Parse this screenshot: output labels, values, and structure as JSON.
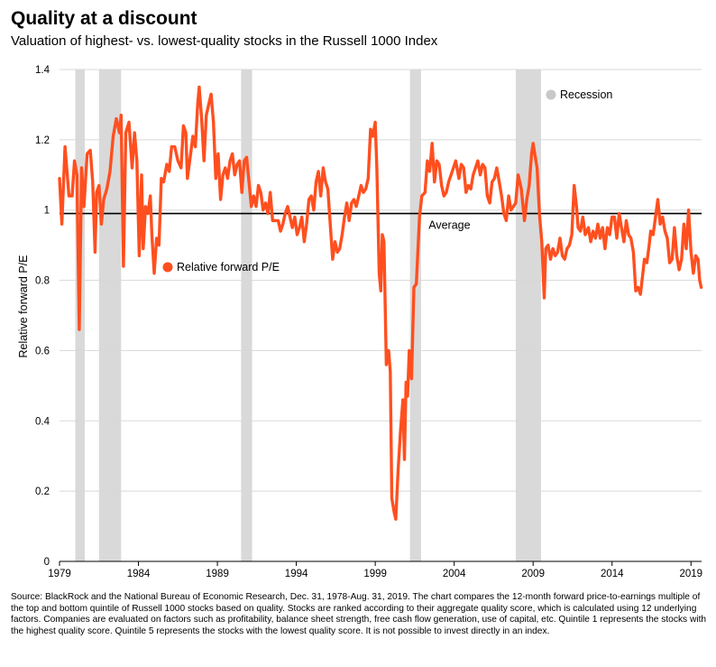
{
  "header": {
    "title": "Quality at a discount",
    "subtitle": "Valuation of highest- vs. lowest-quality stocks in the Russell 1000 Index"
  },
  "footer": {
    "source": "Source: BlackRock and the National Bureau of Economic Research, Dec. 31, 1978-Aug. 31, 2019. The chart compares the 12-month forward price-to-earnings multiple of the top and bottom quintile of Russell 1000 stocks based on quality. Stocks are ranked according to their aggregate quality score, which is calculated using 12 underlying factors. Companies are evaluated on factors such as profitability, balance sheet strength, free cash flow generation, use of capital, etc. Quintile 1 represents the stocks with the highest quality score. Quintile 5 represents the stocks with the lowest quality score. It is not possible to invest directly in an index."
  },
  "chart_data": {
    "type": "line",
    "ylabel": "Relative forward P/E",
    "xlabel": "",
    "xlim": [
      1979,
      2019.67
    ],
    "ylim": [
      0,
      1.4
    ],
    "yticks": [
      0,
      0.2,
      0.4,
      0.6,
      0.8,
      1,
      1.2,
      1.4
    ],
    "ytick_labels": [
      "0",
      "0.2",
      "0.4",
      "0.6",
      "0.8",
      "1",
      "1.2",
      "1.4"
    ],
    "xticks": [
      1979,
      1984,
      1989,
      1994,
      1999,
      2004,
      2009,
      2014,
      2019
    ],
    "xtick_labels": [
      "1979",
      "1984",
      "1989",
      "1994",
      "1999",
      "2004",
      "2009",
      "2014",
      "2019"
    ],
    "grid": "horizontal",
    "colors": {
      "line": "#ff4f1f",
      "recession": "#d9d9d9",
      "average": "#000000",
      "grid": "#d8d8d8"
    },
    "average": {
      "value": 0.99,
      "label": "Average"
    },
    "recessions": [
      [
        1980.0,
        1980.6
      ],
      [
        1981.5,
        1982.9
      ],
      [
        1990.5,
        1991.2
      ],
      [
        2001.2,
        2001.9
      ],
      [
        2007.9,
        2009.5
      ]
    ],
    "legend": [
      {
        "label": "Recession",
        "color": "#c8c8c8",
        "placement": "top-right"
      },
      {
        "label": "Relative forward P/E",
        "color": "#ff4f1f",
        "placement": "middle-left"
      }
    ],
    "series": [
      {
        "name": "Relative forward P/E",
        "points": [
          [
            1979.0,
            1.09
          ],
          [
            1979.15,
            0.96
          ],
          [
            1979.35,
            1.18
          ],
          [
            1979.6,
            1.04
          ],
          [
            1979.8,
            1.04
          ],
          [
            1979.95,
            1.14
          ],
          [
            1980.1,
            1.1
          ],
          [
            1980.25,
            0.66
          ],
          [
            1980.4,
            1.12
          ],
          [
            1980.55,
            1.01
          ],
          [
            1980.75,
            1.16
          ],
          [
            1980.95,
            1.17
          ],
          [
            1981.1,
            1.08
          ],
          [
            1981.25,
            0.88
          ],
          [
            1981.35,
            1.05
          ],
          [
            1981.5,
            1.07
          ],
          [
            1981.65,
            0.96
          ],
          [
            1981.8,
            1.03
          ],
          [
            1982.0,
            1.06
          ],
          [
            1982.2,
            1.11
          ],
          [
            1982.4,
            1.21
          ],
          [
            1982.6,
            1.26
          ],
          [
            1982.8,
            1.22
          ],
          [
            1982.9,
            1.27
          ],
          [
            1983.05,
            0.84
          ],
          [
            1983.2,
            1.22
          ],
          [
            1983.4,
            1.25
          ],
          [
            1983.6,
            1.12
          ],
          [
            1983.75,
            1.22
          ],
          [
            1983.9,
            1.14
          ],
          [
            1984.05,
            0.87
          ],
          [
            1984.2,
            1.1
          ],
          [
            1984.3,
            0.89
          ],
          [
            1984.45,
            1.01
          ],
          [
            1984.6,
            0.99
          ],
          [
            1984.75,
            1.04
          ],
          [
            1984.85,
            0.93
          ],
          [
            1985.0,
            0.82
          ],
          [
            1985.15,
            0.92
          ],
          [
            1985.3,
            0.9
          ],
          [
            1985.45,
            1.09
          ],
          [
            1985.6,
            1.08
          ],
          [
            1985.8,
            1.13
          ],
          [
            1985.95,
            1.11
          ],
          [
            1986.1,
            1.18
          ],
          [
            1986.3,
            1.18
          ],
          [
            1986.5,
            1.14
          ],
          [
            1986.7,
            1.12
          ],
          [
            1986.85,
            1.24
          ],
          [
            1987.0,
            1.22
          ],
          [
            1987.1,
            1.09
          ],
          [
            1987.25,
            1.14
          ],
          [
            1987.45,
            1.21
          ],
          [
            1987.6,
            1.18
          ],
          [
            1987.75,
            1.3
          ],
          [
            1987.85,
            1.35
          ],
          [
            1988.0,
            1.26
          ],
          [
            1988.15,
            1.14
          ],
          [
            1988.3,
            1.27
          ],
          [
            1988.45,
            1.3
          ],
          [
            1988.6,
            1.33
          ],
          [
            1988.75,
            1.25
          ],
          [
            1988.9,
            1.09
          ],
          [
            1989.05,
            1.16
          ],
          [
            1989.2,
            1.03
          ],
          [
            1989.35,
            1.1
          ],
          [
            1989.5,
            1.12
          ],
          [
            1989.65,
            1.09
          ],
          [
            1989.8,
            1.14
          ],
          [
            1989.95,
            1.16
          ],
          [
            1990.1,
            1.1
          ],
          [
            1990.25,
            1.13
          ],
          [
            1990.4,
            1.14
          ],
          [
            1990.55,
            1.05
          ],
          [
            1990.7,
            1.14
          ],
          [
            1990.85,
            1.15
          ],
          [
            1991.0,
            1.08
          ],
          [
            1991.15,
            1.01
          ],
          [
            1991.3,
            1.04
          ],
          [
            1991.45,
            1.01
          ],
          [
            1991.6,
            1.07
          ],
          [
            1991.75,
            1.05
          ],
          [
            1991.9,
            1.0
          ],
          [
            1992.05,
            1.02
          ],
          [
            1992.2,
            0.99
          ],
          [
            1992.35,
            1.05
          ],
          [
            1992.5,
            0.97
          ],
          [
            1992.7,
            0.97
          ],
          [
            1992.85,
            0.97
          ],
          [
            1993.0,
            0.94
          ],
          [
            1993.15,
            0.96
          ],
          [
            1993.3,
            0.99
          ],
          [
            1993.45,
            1.01
          ],
          [
            1993.6,
            0.98
          ],
          [
            1993.75,
            0.95
          ],
          [
            1993.9,
            0.98
          ],
          [
            1994.05,
            0.93
          ],
          [
            1994.2,
            0.95
          ],
          [
            1994.35,
            0.98
          ],
          [
            1994.5,
            0.91
          ],
          [
            1994.65,
            0.96
          ],
          [
            1994.8,
            1.03
          ],
          [
            1994.95,
            1.04
          ],
          [
            1995.1,
            1.0
          ],
          [
            1995.25,
            1.08
          ],
          [
            1995.4,
            1.11
          ],
          [
            1995.55,
            1.04
          ],
          [
            1995.7,
            1.12
          ],
          [
            1995.85,
            1.08
          ],
          [
            1996.0,
            1.06
          ],
          [
            1996.15,
            0.96
          ],
          [
            1996.3,
            0.86
          ],
          [
            1996.45,
            0.91
          ],
          [
            1996.6,
            0.88
          ],
          [
            1996.75,
            0.89
          ],
          [
            1996.9,
            0.93
          ],
          [
            1997.05,
            0.98
          ],
          [
            1997.2,
            1.02
          ],
          [
            1997.35,
            0.97
          ],
          [
            1997.5,
            1.02
          ],
          [
            1997.65,
            1.03
          ],
          [
            1997.8,
            1.01
          ],
          [
            1997.95,
            1.04
          ],
          [
            1998.1,
            1.07
          ],
          [
            1998.25,
            1.05
          ],
          [
            1998.4,
            1.06
          ],
          [
            1998.55,
            1.09
          ],
          [
            1998.7,
            1.23
          ],
          [
            1998.85,
            1.21
          ],
          [
            1999.0,
            1.25
          ],
          [
            1999.1,
            1.12
          ],
          [
            1999.25,
            0.82
          ],
          [
            1999.35,
            0.77
          ],
          [
            1999.45,
            0.93
          ],
          [
            1999.55,
            0.91
          ],
          [
            1999.7,
            0.56
          ],
          [
            1999.85,
            0.6
          ],
          [
            1999.95,
            0.54
          ],
          [
            2000.05,
            0.18
          ],
          [
            2000.2,
            0.14
          ],
          [
            2000.3,
            0.12
          ],
          [
            2000.45,
            0.26
          ],
          [
            2000.6,
            0.37
          ],
          [
            2000.75,
            0.46
          ],
          [
            2000.85,
            0.29
          ],
          [
            2000.95,
            0.51
          ],
          [
            2001.05,
            0.47
          ],
          [
            2001.15,
            0.6
          ],
          [
            2001.3,
            0.52
          ],
          [
            2001.45,
            0.78
          ],
          [
            2001.6,
            0.79
          ],
          [
            2001.8,
            0.98
          ],
          [
            2001.95,
            1.04
          ],
          [
            2002.15,
            1.05
          ],
          [
            2002.3,
            1.14
          ],
          [
            2002.45,
            1.11
          ],
          [
            2002.6,
            1.19
          ],
          [
            2002.75,
            1.08
          ],
          [
            2002.9,
            1.14
          ],
          [
            2003.05,
            1.13
          ],
          [
            2003.2,
            1.07
          ],
          [
            2003.35,
            1.04
          ],
          [
            2003.5,
            1.05
          ],
          [
            2003.65,
            1.08
          ],
          [
            2003.8,
            1.1
          ],
          [
            2003.95,
            1.12
          ],
          [
            2004.1,
            1.14
          ],
          [
            2004.3,
            1.09
          ],
          [
            2004.45,
            1.13
          ],
          [
            2004.6,
            1.12
          ],
          [
            2004.75,
            1.05
          ],
          [
            2004.9,
            1.07
          ],
          [
            2005.05,
            1.06
          ],
          [
            2005.2,
            1.1
          ],
          [
            2005.35,
            1.12
          ],
          [
            2005.5,
            1.14
          ],
          [
            2005.65,
            1.1
          ],
          [
            2005.8,
            1.13
          ],
          [
            2005.95,
            1.12
          ],
          [
            2006.1,
            1.04
          ],
          [
            2006.25,
            1.02
          ],
          [
            2006.4,
            1.08
          ],
          [
            2006.55,
            1.09
          ],
          [
            2006.7,
            1.12
          ],
          [
            2006.85,
            1.08
          ],
          [
            2007.0,
            1.04
          ],
          [
            2007.15,
            0.99
          ],
          [
            2007.3,
            0.97
          ],
          [
            2007.45,
            1.04
          ],
          [
            2007.6,
            1.0
          ],
          [
            2007.75,
            1.01
          ],
          [
            2007.9,
            1.02
          ],
          [
            2008.05,
            1.1
          ],
          [
            2008.25,
            1.06
          ],
          [
            2008.45,
            0.97
          ],
          [
            2008.6,
            1.03
          ],
          [
            2008.75,
            1.07
          ],
          [
            2008.9,
            1.16
          ],
          [
            2009.0,
            1.19
          ],
          [
            2009.1,
            1.16
          ],
          [
            2009.25,
            1.12
          ],
          [
            2009.4,
            0.99
          ],
          [
            2009.55,
            0.91
          ],
          [
            2009.7,
            0.75
          ],
          [
            2009.8,
            0.89
          ],
          [
            2009.95,
            0.9
          ],
          [
            2010.1,
            0.86
          ],
          [
            2010.25,
            0.89
          ],
          [
            2010.4,
            0.87
          ],
          [
            2010.55,
            0.88
          ],
          [
            2010.7,
            0.92
          ],
          [
            2010.85,
            0.87
          ],
          [
            2011.0,
            0.86
          ],
          [
            2011.15,
            0.89
          ],
          [
            2011.3,
            0.9
          ],
          [
            2011.45,
            0.93
          ],
          [
            2011.6,
            1.07
          ],
          [
            2011.75,
            1.01
          ],
          [
            2011.85,
            0.95
          ],
          [
            2012.0,
            0.94
          ],
          [
            2012.15,
            0.98
          ],
          [
            2012.3,
            0.93
          ],
          [
            2012.5,
            0.95
          ],
          [
            2012.65,
            0.91
          ],
          [
            2012.8,
            0.94
          ],
          [
            2012.95,
            0.92
          ],
          [
            2013.1,
            0.96
          ],
          [
            2013.25,
            0.92
          ],
          [
            2013.4,
            0.95
          ],
          [
            2013.55,
            0.89
          ],
          [
            2013.7,
            0.95
          ],
          [
            2013.85,
            0.93
          ],
          [
            2014.0,
            0.98
          ],
          [
            2014.15,
            0.98
          ],
          [
            2014.3,
            0.92
          ],
          [
            2014.45,
            0.99
          ],
          [
            2014.6,
            0.95
          ],
          [
            2014.75,
            0.91
          ],
          [
            2014.9,
            0.97
          ],
          [
            2015.05,
            0.93
          ],
          [
            2015.2,
            0.92
          ],
          [
            2015.35,
            0.88
          ],
          [
            2015.5,
            0.77
          ],
          [
            2015.65,
            0.78
          ],
          [
            2015.8,
            0.76
          ],
          [
            2015.95,
            0.82
          ],
          [
            2016.05,
            0.86
          ],
          [
            2016.2,
            0.85
          ],
          [
            2016.35,
            0.9
          ],
          [
            2016.45,
            0.94
          ],
          [
            2016.6,
            0.93
          ],
          [
            2016.75,
            0.98
          ],
          [
            2016.9,
            1.03
          ],
          [
            2017.05,
            0.96
          ],
          [
            2017.2,
            0.98
          ],
          [
            2017.35,
            0.94
          ],
          [
            2017.5,
            0.92
          ],
          [
            2017.65,
            0.85
          ],
          [
            2017.8,
            0.86
          ],
          [
            2017.95,
            0.95
          ],
          [
            2018.1,
            0.87
          ],
          [
            2018.25,
            0.83
          ],
          [
            2018.4,
            0.86
          ],
          [
            2018.55,
            0.96
          ],
          [
            2018.7,
            0.89
          ],
          [
            2018.85,
            1.0
          ],
          [
            2019.0,
            0.88
          ],
          [
            2019.15,
            0.82
          ],
          [
            2019.3,
            0.87
          ],
          [
            2019.45,
            0.86
          ],
          [
            2019.55,
            0.8
          ],
          [
            2019.65,
            0.78
          ]
        ]
      }
    ]
  }
}
